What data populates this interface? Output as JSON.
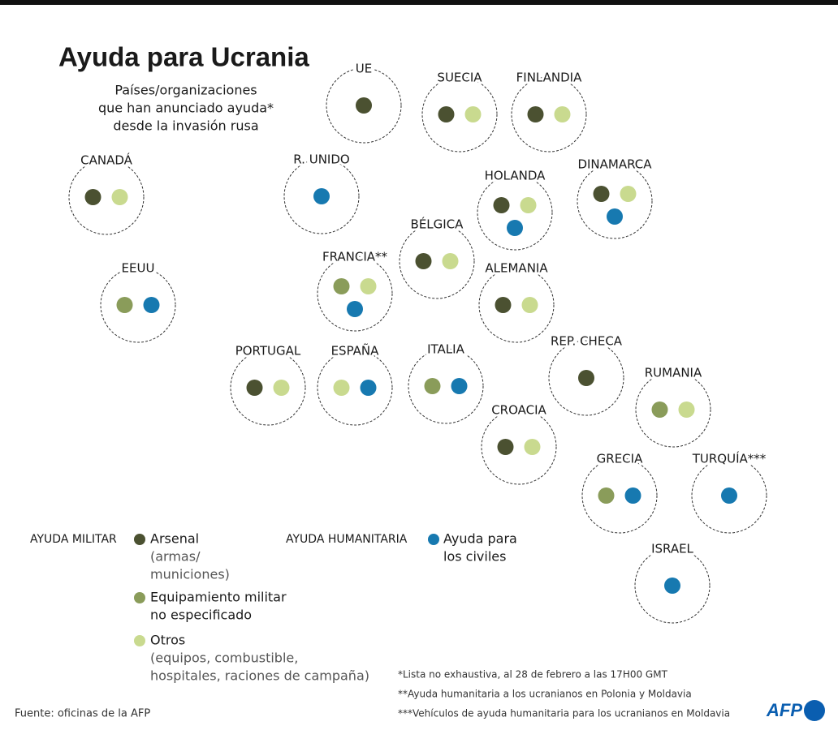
{
  "header": {
    "title": "Ayuda para Ucrania",
    "subtitle": [
      "Países/organizaciones",
      "que han anunciado ayuda*",
      "desde la invasión rusa"
    ]
  },
  "countries": [
    {
      "name": "UE",
      "dots": [
        "#4b5131"
      ]
    },
    {
      "name": "SUECIA",
      "dots": [
        "#4b5131",
        "#c9da8f"
      ]
    },
    {
      "name": "FINLANDIA",
      "dots": [
        "#4b5131",
        "#c9da8f"
      ]
    },
    {
      "name": "CANADÁ",
      "dots": [
        "#4b5131",
        "#c9da8f"
      ]
    },
    {
      "name": "R. UNIDO",
      "dots": [
        "#1779b0"
      ]
    },
    {
      "name": "HOLANDA",
      "dots": [
        "#4b5131",
        "#c9da8f",
        "#1779b0"
      ]
    },
    {
      "name": "DINAMARCA",
      "dots": [
        "#4b5131",
        "#c9da8f",
        "#1779b0"
      ]
    },
    {
      "name": "BÉLGICA",
      "dots": [
        "#4b5131",
        "#c9da8f"
      ]
    },
    {
      "name": "FRANCIA**",
      "dots": [
        "#8a9c5a",
        "#c9da8f",
        "#1779b0"
      ]
    },
    {
      "name": "EEUU",
      "dots": [
        "#8a9c5a",
        "#1779b0"
      ]
    },
    {
      "name": "ALEMANIA",
      "dots": [
        "#4b5131",
        "#c9da8f"
      ]
    },
    {
      "name": "PORTUGAL",
      "dots": [
        "#4b5131",
        "#c9da8f"
      ]
    },
    {
      "name": "ESPAÑA",
      "dots": [
        "#c9da8f",
        "#1779b0"
      ]
    },
    {
      "name": "ITALIA",
      "dots": [
        "#8a9c5a",
        "#1779b0"
      ]
    },
    {
      "name": "REP. CHECA",
      "dots": [
        "#4b5131"
      ]
    },
    {
      "name": "RUMANIA",
      "dots": [
        "#8a9c5a",
        "#c9da8f"
      ]
    },
    {
      "name": "CROACIA",
      "dots": [
        "#4b5131",
        "#c9da8f"
      ]
    },
    {
      "name": "GRECIA",
      "dots": [
        "#8a9c5a",
        "#1779b0"
      ]
    },
    {
      "name": "TURQUÍA***",
      "dots": [
        "#1779b0"
      ]
    },
    {
      "name": "ISRAEL",
      "dots": [
        "#1779b0"
      ]
    }
  ],
  "legend": [
    {
      "title": "AYUDA MILITAR",
      "items": [
        {
          "color": "#4b5131",
          "label": [
            "Arsenal"
          ],
          "note": [
            "(armas/",
            "municiones)"
          ]
        },
        {
          "color": "#8a9c5a",
          "label": [
            "Equipamiento militar",
            "no especificado"
          ]
        },
        {
          "color": "#c9da8f",
          "label": [
            "Otros"
          ],
          "note": [
            "(equipos, combustible,",
            "hospitales, raciones de campaña)"
          ]
        }
      ]
    },
    {
      "title": "AYUDA HUMANITARIA",
      "items": [
        {
          "color": "#1779b0",
          "label": [
            "Ayuda para",
            "los civiles"
          ]
        }
      ]
    }
  ],
  "footnotes": [
    "*Lista no exhaustiva, al 28 de febrero a las 17H00 GMT",
    "**Ayuda humanitaria a los ucranianos en Polonia y Moldavia",
    "***Vehículos de ayuda humanitaria para los ucranianos en Moldavia"
  ],
  "source": "Fuente: oficinas de la AFP",
  "logo": "AFP"
}
